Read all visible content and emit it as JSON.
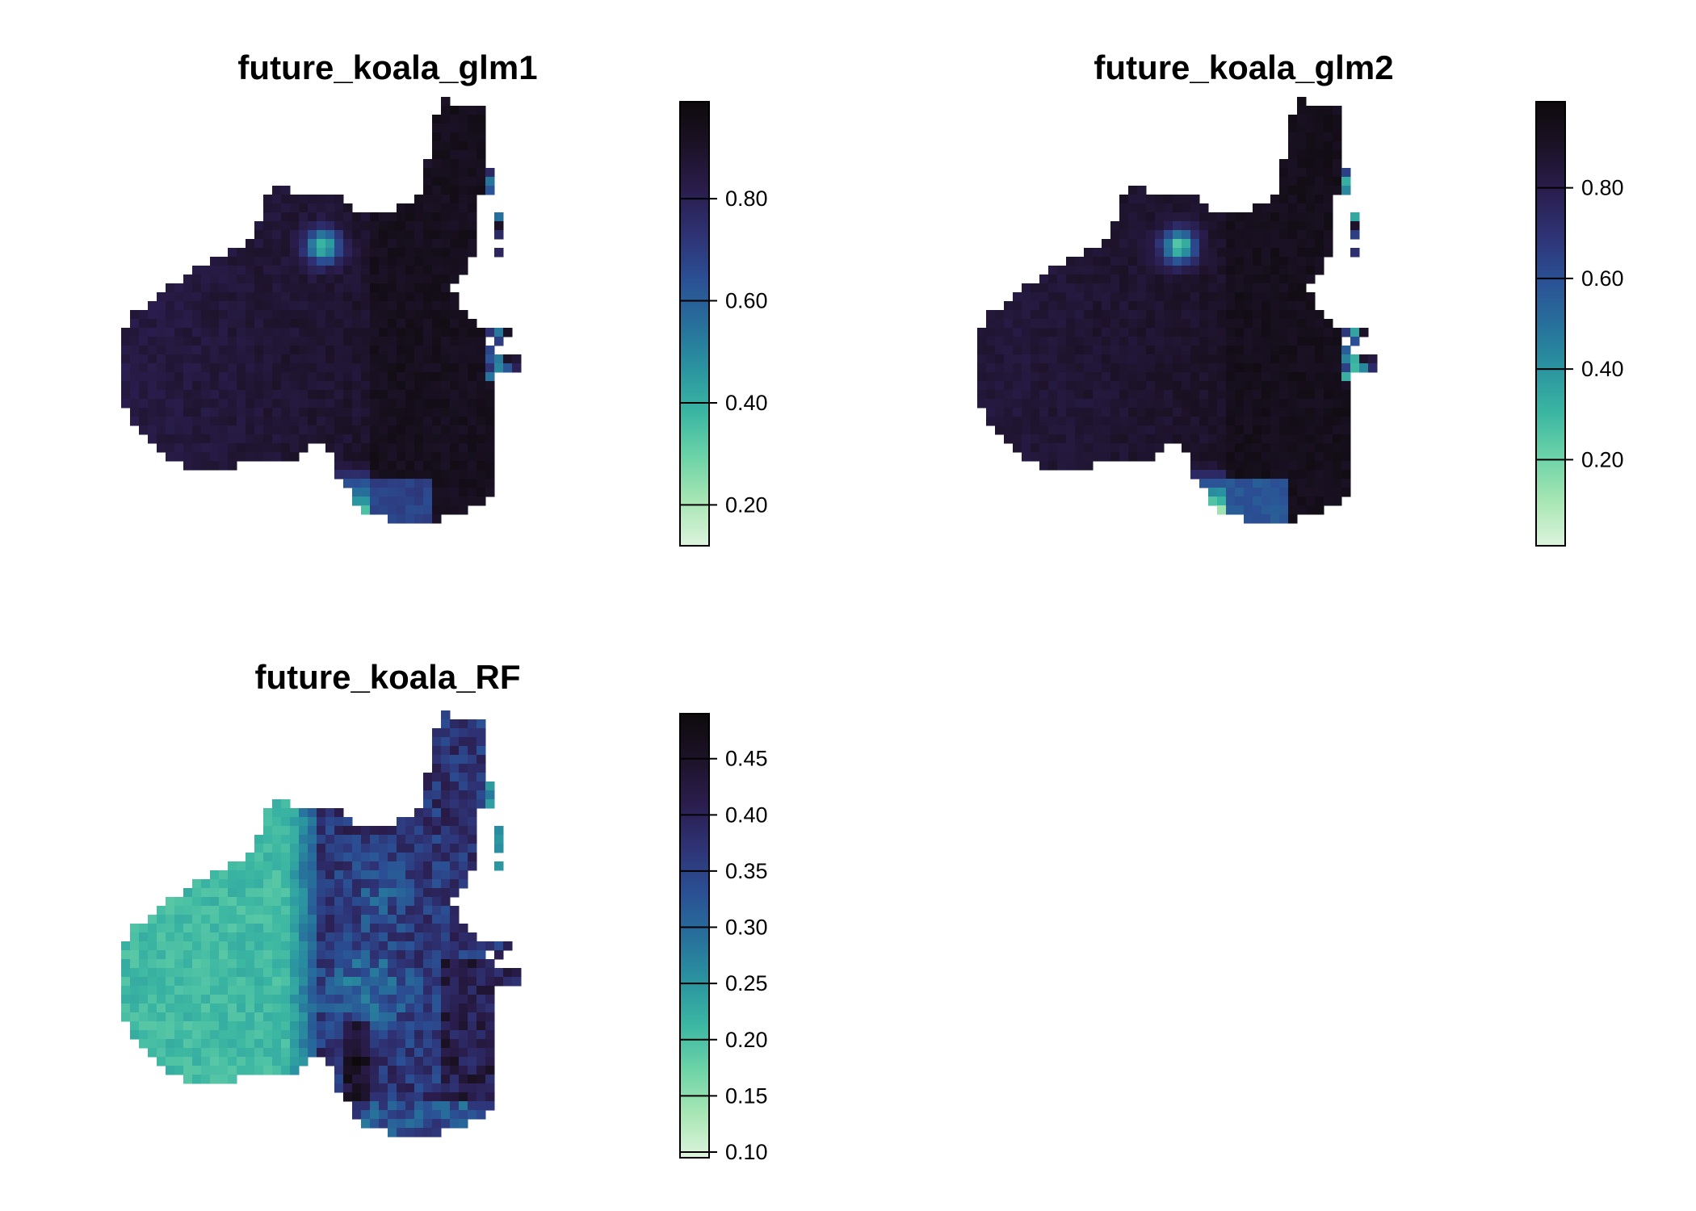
{
  "colormap": [
    "#ddf4dd",
    "#a8e6b4",
    "#6cd3a8",
    "#3bb6a2",
    "#2a93a0",
    "#276f9b",
    "#2b4f94",
    "#2e3274",
    "#2a1d4d",
    "#1c1227",
    "#0d0a0c"
  ],
  "no_data_color": "#ffffff",
  "panels": [
    {
      "title": "future_koala_glm1",
      "legend": {
        "min": 0.12,
        "max": 0.99,
        "ticks": [
          0.2,
          0.4,
          0.6,
          0.8
        ],
        "tick_labels": [
          "0.20",
          "0.40",
          "0.60",
          "0.80"
        ]
      },
      "surface": "glm1"
    },
    {
      "title": "future_koala_glm2",
      "legend": {
        "min": 0.01,
        "max": 0.99,
        "ticks": [
          0.2,
          0.4,
          0.6,
          0.8
        ],
        "tick_labels": [
          "0.20",
          "0.40",
          "0.60",
          "0.80"
        ]
      },
      "surface": "glm2"
    },
    {
      "title": "future_koala_RF",
      "legend": {
        "min": 0.095,
        "max": 0.49,
        "ticks": [
          0.1,
          0.15,
          0.2,
          0.25,
          0.3,
          0.35,
          0.4,
          0.45
        ],
        "tick_labels": [
          "0.10",
          "0.15",
          "0.20",
          "0.25",
          "0.30",
          "0.35",
          "0.40",
          "0.45"
        ]
      },
      "surface": "rf"
    }
  ]
}
